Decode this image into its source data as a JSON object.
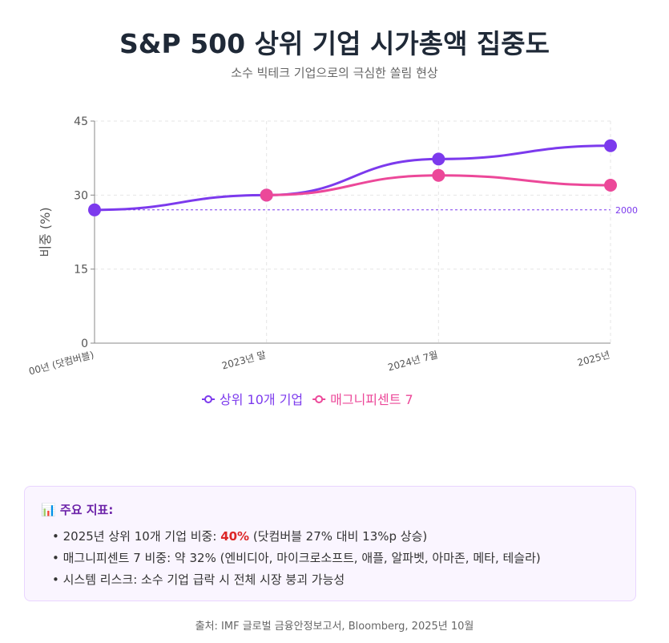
{
  "chart_data": {
    "type": "line",
    "title": "S&P 500 상위 기업 시가총액 집중도",
    "subtitle": "소수 빅테크 기업으로의 극심한 쏠림 현상",
    "y_label": "비중 (%)",
    "categories": [
      "00년 (닷컴버블)",
      "2023년 말",
      "2024년 7월",
      "2025년"
    ],
    "series": [
      {
        "name": "상위 10개 기업",
        "color": "#7c3aed",
        "values": [
          27,
          30,
          37.3,
          40
        ]
      },
      {
        "name": "매그니피센트 7",
        "color": "#ec4899",
        "values": [
          null,
          30,
          34,
          32
        ]
      }
    ],
    "reference_line": {
      "value": 27,
      "label": "2000",
      "color": "#7c3aed"
    },
    "ylim": [
      0,
      45
    ],
    "yticks": [
      0,
      15,
      30,
      45
    ],
    "grid": true,
    "legend": "bottom"
  },
  "info_box": {
    "title": "📊 주요 지표:",
    "items": [
      {
        "text": "2025년 상위 10개 기업 비중: ",
        "highlight": "40%",
        "rest": " (닷컴버블 27% 대비 13%p 상승)"
      },
      {
        "text": "매그니피센트 7 비중: 약 32% (엔비디아, 마이크로소프트, 애플, 알파벳, 아마존, 메타, 테슬라)"
      },
      {
        "text": "시스템 리스크: 소수 기업 급락 시 전체 시장 붕괴 가능성"
      }
    ]
  },
  "source": "출처: IMF 글로벌 금융안정보고서, Bloomberg, 2025년 10월"
}
